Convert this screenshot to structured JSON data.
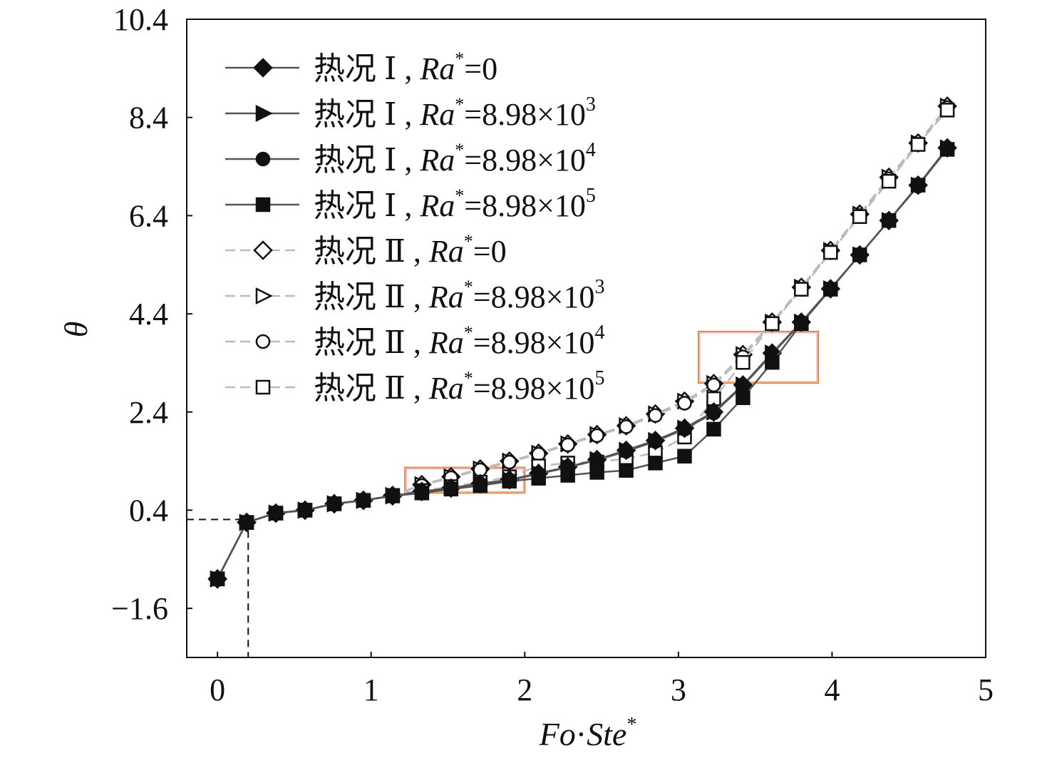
{
  "chart_data": {
    "type": "line",
    "xlabel": {
      "a": "Fo",
      "dot": "·",
      "b": "Ste",
      "sup": "*"
    },
    "ylabel": "θ",
    "xlim": [
      -0.2,
      5
    ],
    "ylim": [
      -2.6,
      10.4
    ],
    "xticks": [
      0,
      1,
      2,
      3,
      4,
      5
    ],
    "xtick_labels": [
      "0",
      "1",
      "2",
      "3",
      "4",
      "5"
    ],
    "yticks": [
      -1.6,
      0.4,
      2.4,
      4.4,
      6.4,
      8.4,
      10.4
    ],
    "ytick_labels": [
      "−1.6",
      "0.4",
      "2.4",
      "4.4",
      "6.4",
      "8.4",
      "10.4"
    ],
    "legend_position": "top-left",
    "x": [
      0,
      0.19,
      0.38,
      0.57,
      0.76,
      0.95,
      1.14,
      1.33,
      1.52,
      1.71,
      1.9,
      2.09,
      2.28,
      2.47,
      2.66,
      2.85,
      3.04,
      3.23,
      3.42,
      3.61,
      3.8,
      3.99,
      4.18,
      4.37,
      4.56,
      4.75
    ],
    "series": [
      {
        "case": "热况 Ⅰ",
        "var": "Ra",
        "sup": "*",
        "eq": "=0",
        "exp": "",
        "marker": "diamond",
        "filled": true,
        "dashed": false,
        "values": [
          -1.0,
          0.15,
          0.34,
          0.4,
          0.53,
          0.6,
          0.69,
          0.78,
          0.85,
          0.94,
          1.02,
          1.15,
          1.28,
          1.43,
          1.62,
          1.82,
          2.07,
          2.4,
          2.95,
          3.6,
          4.23,
          4.91,
          5.6,
          6.3,
          7.02,
          7.78
        ]
      },
      {
        "case": "热况 Ⅰ",
        "var": "Ra",
        "sup": "*",
        "eq": "=8.98×10",
        "exp": "3",
        "marker": "triangle-right",
        "filled": true,
        "dashed": false,
        "values": [
          -1.0,
          0.15,
          0.34,
          0.4,
          0.53,
          0.6,
          0.69,
          0.78,
          0.85,
          0.94,
          1.02,
          1.15,
          1.28,
          1.43,
          1.62,
          1.82,
          2.07,
          2.4,
          2.95,
          3.6,
          4.23,
          4.91,
          5.6,
          6.3,
          7.02,
          7.78
        ]
      },
      {
        "case": "热况 Ⅰ",
        "var": "Ra",
        "sup": "*",
        "eq": "=8.98×10",
        "exp": "4",
        "marker": "circle",
        "filled": true,
        "dashed": false,
        "values": [
          -1.0,
          0.15,
          0.34,
          0.4,
          0.53,
          0.6,
          0.69,
          0.77,
          0.84,
          0.93,
          1.01,
          1.14,
          1.27,
          1.42,
          1.6,
          1.8,
          2.05,
          2.38,
          2.93,
          3.58,
          4.22,
          4.9,
          5.6,
          6.3,
          7.0,
          7.77
        ]
      },
      {
        "case": "热况 Ⅰ",
        "var": "Ra",
        "sup": "*",
        "eq": "=8.98×10",
        "exp": "5",
        "marker": "square",
        "filled": true,
        "dashed": false,
        "values": [
          -1.0,
          0.15,
          0.34,
          0.4,
          0.53,
          0.6,
          0.69,
          0.75,
          0.83,
          0.9,
          0.99,
          1.05,
          1.11,
          1.17,
          1.21,
          1.36,
          1.5,
          2.05,
          2.69,
          3.41,
          4.2,
          4.9,
          5.6,
          6.3,
          7.02,
          7.75
        ]
      },
      {
        "case": "热况 Ⅱ",
        "var": "Ra",
        "sup": "*",
        "eq": "=0",
        "exp": "",
        "marker": "diamond",
        "filled": false,
        "dashed": true,
        "values": [
          -1.0,
          0.15,
          0.34,
          0.4,
          0.53,
          0.6,
          0.7,
          0.92,
          1.08,
          1.24,
          1.4,
          1.56,
          1.75,
          1.94,
          2.12,
          2.36,
          2.62,
          2.98,
          3.57,
          4.23,
          4.94,
          5.69,
          6.43,
          7.18,
          7.88,
          8.63
        ]
      },
      {
        "case": "热况 Ⅱ",
        "var": "Ra",
        "sup": "*",
        "eq": "=8.98×10",
        "exp": "3",
        "marker": "triangle-right",
        "filled": false,
        "dashed": true,
        "values": [
          -1.0,
          0.15,
          0.34,
          0.4,
          0.53,
          0.6,
          0.7,
          0.92,
          1.08,
          1.24,
          1.4,
          1.56,
          1.75,
          1.94,
          2.12,
          2.36,
          2.62,
          2.98,
          3.57,
          4.23,
          4.94,
          5.69,
          6.43,
          7.18,
          7.88,
          8.63
        ]
      },
      {
        "case": "热况 Ⅱ",
        "var": "Ra",
        "sup": "*",
        "eq": "=8.98×10",
        "exp": "4",
        "marker": "circle",
        "filled": false,
        "dashed": true,
        "values": [
          -1.0,
          0.15,
          0.34,
          0.4,
          0.53,
          0.6,
          0.7,
          0.9,
          1.06,
          1.22,
          1.38,
          1.54,
          1.73,
          1.92,
          2.1,
          2.33,
          2.58,
          2.95,
          3.52,
          4.2,
          4.9,
          5.66,
          6.4,
          7.15,
          7.85,
          8.6
        ]
      },
      {
        "case": "热况 Ⅱ",
        "var": "Ra",
        "sup": "*",
        "eq": "=8.98×10",
        "exp": "5",
        "marker": "square",
        "filled": false,
        "dashed": true,
        "values": [
          -1.0,
          0.15,
          0.34,
          0.4,
          0.53,
          0.6,
          0.7,
          0.8,
          0.88,
          0.97,
          1.08,
          1.3,
          1.36,
          1.38,
          1.45,
          1.57,
          1.89,
          2.67,
          3.41,
          4.2,
          4.9,
          5.65,
          6.38,
          7.1,
          7.85,
          8.55
        ]
      }
    ],
    "guide": {
      "x": 0.2,
      "y": 0.21
    },
    "highlight_boxes": [
      {
        "x": [
          1.22,
          2.0
        ],
        "y": [
          0.75,
          1.27
        ]
      },
      {
        "x": [
          3.13,
          3.91
        ],
        "y": [
          2.99,
          4.04
        ]
      }
    ],
    "colors": {
      "case1_line": "#555555",
      "case2_line": "#bbbbbb",
      "box_outer": "#e08a3c",
      "box_inner": "#e7487a",
      "marker": "#111111"
    }
  }
}
